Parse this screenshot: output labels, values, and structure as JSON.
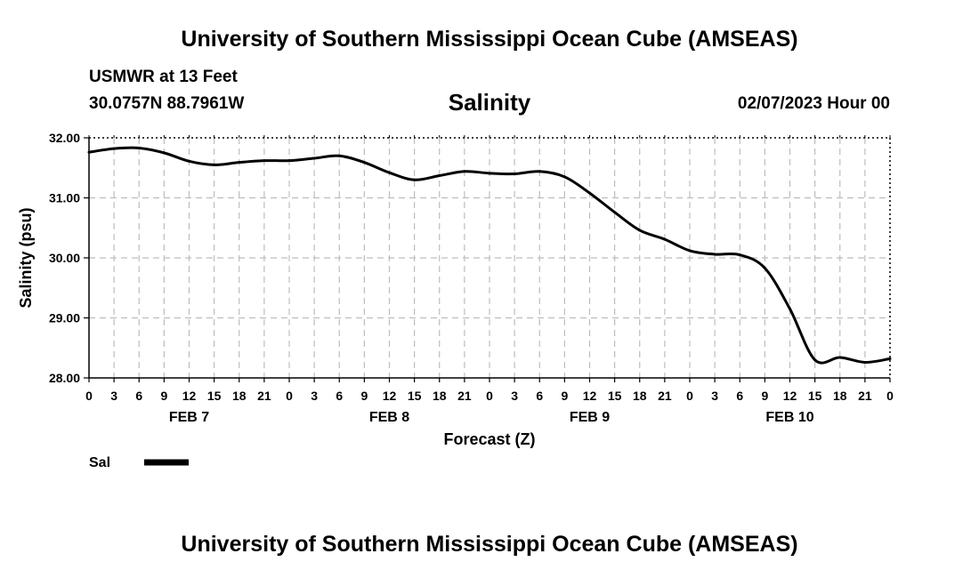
{
  "header": {
    "title": "University of Southern Mississippi Ocean Cube (AMSEAS)",
    "station": "USMWR at 13 Feet",
    "coords": "30.0757N  88.7961W",
    "variable": "Salinity",
    "datetime": "02/07/2023 Hour 00"
  },
  "footer": {
    "title": "University of Southern Mississippi Ocean Cube (AMSEAS)"
  },
  "colors": {
    "line": "#000000",
    "grid": "#bdbdbd",
    "background": "#ffffff"
  },
  "chart_data": {
    "type": "line",
    "title": "Salinity",
    "xlabel": "Forecast (Z)",
    "ylabel": "Salinity (psu)",
    "xlim": [
      0,
      96
    ],
    "ylim": [
      28,
      32
    ],
    "yticks": [
      "28.00",
      "29.00",
      "30.00",
      "31.00",
      "32.00"
    ],
    "xtick_labels": [
      "0",
      "3",
      "6",
      "9",
      "12",
      "15",
      "18",
      "21",
      "0",
      "3",
      "6",
      "9",
      "12",
      "15",
      "18",
      "21",
      "0",
      "3",
      "6",
      "9",
      "12",
      "15",
      "18",
      "21",
      "0",
      "3",
      "6",
      "9",
      "12",
      "15",
      "18",
      "21",
      "0"
    ],
    "day_labels": [
      {
        "label": "FEB 7",
        "hour": 12
      },
      {
        "label": "FEB 8",
        "hour": 36
      },
      {
        "label": "FEB 9",
        "hour": 60
      },
      {
        "label": "FEB 10",
        "hour": 84
      }
    ],
    "grid": true,
    "legend": {
      "placement": "bottom-left",
      "entries": [
        "Sal"
      ]
    },
    "series": [
      {
        "name": "Sal",
        "x": [
          0,
          3,
          6,
          9,
          12,
          15,
          18,
          21,
          24,
          27,
          30,
          33,
          36,
          39,
          42,
          45,
          48,
          51,
          54,
          57,
          60,
          63,
          66,
          69,
          72,
          75,
          78,
          81,
          84,
          87,
          90,
          93,
          96
        ],
        "values": [
          31.76,
          31.82,
          31.83,
          31.75,
          31.61,
          31.55,
          31.59,
          31.62,
          31.62,
          31.66,
          31.7,
          31.59,
          31.42,
          31.3,
          31.37,
          31.44,
          31.41,
          31.4,
          31.44,
          31.35,
          31.08,
          30.76,
          30.46,
          30.31,
          30.12,
          30.06,
          30.05,
          29.83,
          29.15,
          28.3,
          28.34,
          28.26,
          28.32
        ]
      }
    ]
  }
}
